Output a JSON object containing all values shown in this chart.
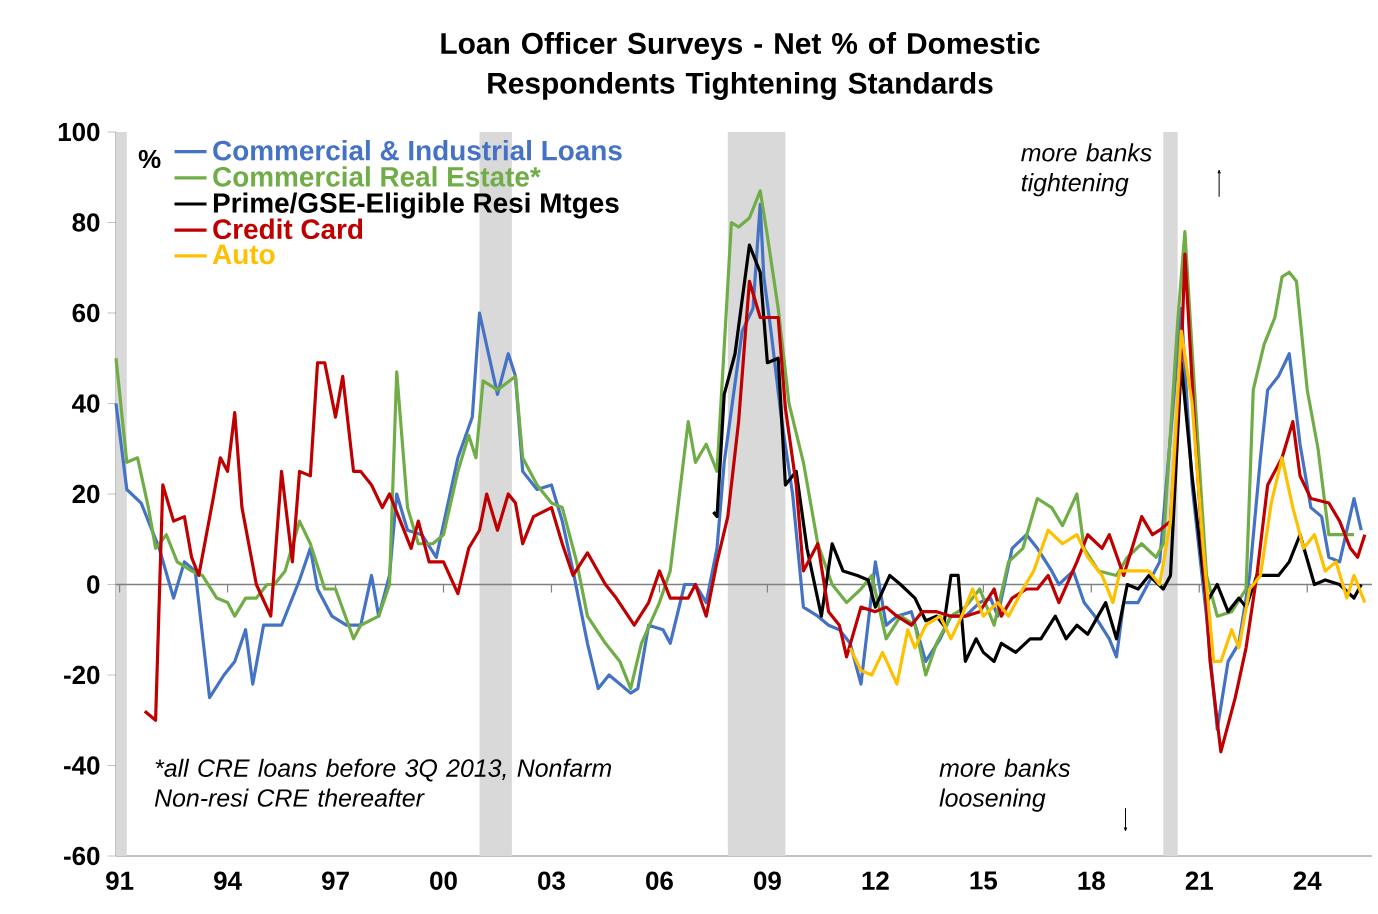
{
  "chart_data": {
    "type": "line",
    "title": "Loan Officer Surveys - Net % of Domestic Respondents Tightening Standards",
    "ylabel": "%",
    "xlim": [
      1990.9,
      2025.8
    ],
    "ylim": [
      -60,
      100
    ],
    "xticks": [
      {
        "value": 1991,
        "label": "91"
      },
      {
        "value": 1994,
        "label": "94"
      },
      {
        "value": 1997,
        "label": "97"
      },
      {
        "value": 2000,
        "label": "00"
      },
      {
        "value": 2003,
        "label": "03"
      },
      {
        "value": 2006,
        "label": "06"
      },
      {
        "value": 2009,
        "label": "09"
      },
      {
        "value": 2012,
        "label": "12"
      },
      {
        "value": 2015,
        "label": "15"
      },
      {
        "value": 2018,
        "label": "18"
      },
      {
        "value": 2021,
        "label": "21"
      },
      {
        "value": 2024,
        "label": "24"
      }
    ],
    "yticks": [
      -60,
      -40,
      -20,
      0,
      20,
      40,
      60,
      80,
      100
    ],
    "legend": "top left",
    "marker": "none",
    "line_style": "solid",
    "series": [
      {
        "name": "Commercial & Industrial Loans",
        "color": "#4472c4",
        "x": [
          1990.9,
          1991.2,
          1991.6,
          1992.1,
          1992.5,
          1992.8,
          1993.1,
          1993.5,
          1993.9,
          1994.2,
          1994.5,
          1994.7,
          1995.0,
          1995.5,
          1996.0,
          1996.3,
          1996.5,
          1996.9,
          1997.3,
          1997.7,
          1998.0,
          1998.2,
          1998.5,
          1998.7,
          1999.0,
          1999.4,
          1999.8,
          2000.4,
          2000.8,
          2001.0,
          2001.5,
          2001.8,
          2002.0,
          2002.2,
          2002.6,
          2003.0,
          2003.3,
          2003.6,
          2004.0,
          2004.3,
          2004.6,
          2004.9,
          2005.2,
          2005.4,
          2005.7,
          2006.1,
          2006.3,
          2006.7,
          2007.0,
          2007.3,
          2007.6,
          2007.8,
          2008.3,
          2008.6,
          2008.8,
          2008.9,
          2009.1,
          2009.4,
          2009.7,
          2010.0,
          2010.4,
          2010.7,
          2011.0,
          2011.3,
          2011.6,
          2012.0,
          2012.3,
          2012.6,
          2013.0,
          2013.4,
          2013.8,
          2014.1,
          2014.5,
          2014.9,
          2015.2,
          2015.4,
          2015.8,
          2016.2,
          2016.5,
          2016.9,
          2017.1,
          2017.5,
          2017.8,
          2018.1,
          2018.5,
          2018.7,
          2018.9,
          2019.3,
          2019.7,
          2019.9,
          2020.3,
          2020.5,
          2020.8,
          2021.2,
          2021.5,
          2021.8,
          2022.1,
          2022.4,
          2022.7,
          2022.9,
          2023.2,
          2023.5,
          2023.8,
          2024.1,
          2024.4,
          2024.6,
          2024.9,
          2025.3,
          2025.5
        ],
        "values": [
          40,
          21,
          18,
          8,
          -3,
          5,
          3,
          -25,
          -20,
          -17,
          -10,
          -22,
          -9,
          -9,
          1,
          8,
          -1,
          -7,
          -9,
          -9,
          2,
          -7,
          2,
          20,
          12,
          11,
          6,
          28,
          37,
          60,
          42,
          51,
          46,
          25,
          21,
          22,
          14,
          3,
          -13,
          -23,
          -20,
          -22,
          -24,
          -23,
          -9,
          -10,
          -13,
          0,
          0,
          -4,
          8,
          27,
          56,
          61,
          84,
          68,
          56,
          36,
          20,
          -5,
          -7,
          -9,
          -10,
          -13,
          -22,
          5,
          -9,
          -7,
          -6,
          -17,
          -12,
          -7,
          -7,
          -4,
          -3,
          -7,
          8,
          11,
          8,
          3,
          0,
          3,
          -4,
          -7,
          -12,
          -16,
          -4,
          -4,
          2,
          5,
          42,
          61,
          22,
          -7,
          -32,
          -17,
          -13,
          2,
          28,
          43,
          46,
          51,
          31,
          17,
          15,
          6,
          5,
          19,
          12
        ]
      },
      {
        "name": "Commercial Real Estate*",
        "color": "#70ad47",
        "x": [
          1990.9,
          1991.2,
          1991.5,
          1991.8,
          1992.0,
          1992.3,
          1992.6,
          1993.0,
          1993.3,
          1993.7,
          1994.0,
          1994.2,
          1994.5,
          1994.8,
          1995.1,
          1995.3,
          1995.6,
          1996.0,
          1996.3,
          1996.7,
          1997.0,
          1997.5,
          1997.7,
          1998.2,
          1998.5,
          1998.7,
          1999.0,
          1999.3,
          1999.7,
          2000.0,
          2000.4,
          2000.7,
          2000.9,
          2001.1,
          2001.5,
          2002.0,
          2002.2,
          2002.6,
          2003.0,
          2003.3,
          2003.7,
          2004.0,
          2004.5,
          2004.9,
          2005.2,
          2005.5,
          2006.0,
          2006.3,
          2006.8,
          2007.0,
          2007.3,
          2007.6,
          2008.0,
          2008.2,
          2008.5,
          2008.8,
          2009.0,
          2009.3,
          2009.6,
          2010.0,
          2010.4,
          2010.8,
          2011.2,
          2011.6,
          2011.9,
          2012.3,
          2012.7,
          2013.1,
          2013.4,
          2013.7,
          2014.1,
          2014.5,
          2014.9,
          2015.3,
          2015.7,
          2016.1,
          2016.5,
          2016.9,
          2017.2,
          2017.6,
          2017.8,
          2018.2,
          2018.7,
          2019.0,
          2019.4,
          2019.8,
          2020.0,
          2020.4,
          2020.6,
          2020.9,
          2021.2,
          2021.5,
          2021.9,
          2022.3,
          2022.5,
          2022.8,
          2023.1,
          2023.3,
          2023.5,
          2023.7,
          2024.0,
          2024.3,
          2024.6,
          2024.9,
          2025.3
        ],
        "values": [
          50,
          27,
          28,
          17,
          8,
          11,
          5,
          3,
          2,
          -3,
          -4,
          -7,
          -3,
          -3,
          0,
          0,
          3,
          14,
          9,
          -1,
          -1,
          -12,
          -9,
          -7,
          0,
          47,
          17,
          9,
          9,
          11,
          25,
          33,
          28,
          45,
          43,
          46,
          28,
          22,
          18,
          17,
          5,
          -7,
          -13,
          -17,
          -23,
          -13,
          -4,
          3,
          36,
          27,
          31,
          25,
          80,
          79,
          81,
          87,
          77,
          61,
          40,
          27,
          9,
          0,
          -4,
          -1,
          2,
          -12,
          -7,
          -9,
          -20,
          -13,
          -7,
          -5,
          -1,
          -9,
          5,
          8,
          19,
          17,
          13,
          20,
          8,
          3,
          2,
          6,
          9,
          6,
          9,
          58,
          78,
          39,
          2,
          -7,
          -6,
          -1,
          43,
          53,
          59,
          68,
          69,
          67,
          43,
          30,
          11,
          11,
          11
        ]
      },
      {
        "name": "Prime/GSE-Eligible Resi Mtges",
        "color": "#000000",
        "x": [
          2007.5,
          2007.6,
          2007.8,
          2008.1,
          2008.5,
          2008.8,
          2009.0,
          2009.3,
          2009.5,
          2009.8,
          2010.1,
          2010.5,
          2010.8,
          2011.1,
          2011.5,
          2011.8,
          2012.0,
          2012.4,
          2012.7,
          2013.1,
          2013.4,
          2013.7,
          2013.9,
          2014.1,
          2014.3,
          2014.5,
          2014.8,
          2015.0,
          2015.3,
          2015.5,
          2015.9,
          2016.3,
          2016.6,
          2017.0,
          2017.3,
          2017.6,
          2017.9,
          2018.4,
          2018.7,
          2019.0,
          2019.3,
          2019.6,
          2020.0,
          2020.2,
          2020.5,
          2020.8,
          2021.2,
          2021.5,
          2021.8,
          2022.1,
          2022.3,
          2022.6,
          2023.2,
          2023.5,
          2023.8,
          2024.2,
          2024.5,
          2024.9,
          2025.3,
          2025.5
        ],
        "values": [
          16,
          15,
          42,
          51,
          75,
          69,
          49,
          50,
          22,
          25,
          8,
          -7,
          9,
          3,
          2,
          1,
          -5,
          2,
          0,
          -3,
          -8,
          -7,
          -9,
          2,
          2,
          -17,
          -12,
          -15,
          -17,
          -13,
          -15,
          -12,
          -12,
          -7,
          -12,
          -9,
          -11,
          -4,
          -12,
          0,
          -1,
          2,
          -1,
          2,
          49,
          24,
          -4,
          0,
          -6,
          -3,
          -5,
          2,
          2,
          5,
          11,
          0,
          1,
          0,
          -3,
          0
        ]
      },
      {
        "name": "Credit Card",
        "color": "#c00000",
        "x": [
          1991.7,
          1992.0,
          1992.2,
          1992.5,
          1992.8,
          1993.0,
          1993.2,
          1993.6,
          1993.8,
          1994.0,
          1994.2,
          1994.4,
          1994.8,
          1995.2,
          1995.5,
          1995.8,
          1996.0,
          1996.3,
          1996.5,
          1996.7,
          1997.0,
          1997.2,
          1997.5,
          1997.7,
          1998.0,
          1998.3,
          1998.5,
          1998.9,
          1999.1,
          1999.3,
          1999.6,
          2000.0,
          2000.4,
          2000.7,
          2001.0,
          2001.2,
          2001.5,
          2001.8,
          2002.0,
          2002.2,
          2002.5,
          2003.0,
          2003.3,
          2003.6,
          2004.0,
          2004.5,
          2004.8,
          2005.3,
          2005.7,
          2006.0,
          2006.3,
          2006.8,
          2007.0,
          2007.3,
          2007.6,
          2007.9,
          2008.2,
          2008.5,
          2008.8,
          2009.3,
          2009.5,
          2009.8,
          2010.0,
          2010.4,
          2010.7,
          2011.0,
          2011.2,
          2011.6,
          2012.0,
          2012.3,
          2012.6,
          2013.0,
          2013.3,
          2013.7,
          2014.1,
          2014.5,
          2014.9,
          2015.3,
          2015.5,
          2015.8,
          2016.2,
          2016.5,
          2016.8,
          2017.1,
          2017.6,
          2017.9,
          2018.3,
          2018.5,
          2018.9,
          2019.4,
          2019.7,
          2019.9,
          2020.2,
          2020.5,
          2020.6,
          2020.9,
          2021.3,
          2021.6,
          2022.0,
          2022.3,
          2022.6,
          2022.9,
          2023.3,
          2023.6,
          2023.8,
          2024.1,
          2024.6,
          2024.9,
          2025.2,
          2025.4,
          2025.6
        ],
        "values": [
          -28,
          -30,
          22,
          14,
          15,
          6,
          2,
          19,
          28,
          25,
          38,
          17,
          0,
          -7,
          25,
          5,
          25,
          24,
          49,
          49,
          37,
          46,
          25,
          25,
          22,
          17,
          20,
          12,
          8,
          14,
          5,
          5,
          -2,
          8,
          12,
          20,
          12,
          20,
          18,
          9,
          15,
          17,
          9,
          2,
          7,
          0,
          -3,
          -9,
          -4,
          3,
          -3,
          -3,
          0,
          -7,
          5,
          15,
          36,
          67,
          59,
          59,
          39,
          22,
          3,
          9,
          -6,
          -9,
          -16,
          -5,
          -6,
          -5,
          -7,
          -9,
          -6,
          -6,
          -7,
          -7,
          -6,
          -1,
          -7,
          -3,
          -1,
          -1,
          2,
          -4,
          5,
          11,
          8,
          11,
          2,
          15,
          11,
          12,
          14,
          50,
          73,
          31,
          -17,
          -37,
          -25,
          -14,
          2,
          22,
          28,
          36,
          24,
          19,
          18,
          14,
          8,
          6,
          11
        ]
      },
      {
        "name": "Auto",
        "color": "#ffc000",
        "x": [
          2011.3,
          2011.6,
          2011.9,
          2012.2,
          2012.6,
          2012.9,
          2013.1,
          2013.4,
          2013.8,
          2014.1,
          2014.4,
          2014.7,
          2015.0,
          2015.4,
          2015.7,
          2016.1,
          2016.4,
          2016.8,
          2017.2,
          2017.6,
          2017.9,
          2018.3,
          2018.6,
          2018.8,
          2019.2,
          2019.6,
          2019.9,
          2020.2,
          2020.5,
          2020.8,
          2021.1,
          2021.4,
          2021.6,
          2021.9,
          2022.1,
          2022.4,
          2022.7,
          2023.0,
          2023.3,
          2023.6,
          2023.9,
          2024.2,
          2024.5,
          2024.8,
          2025.1,
          2025.3,
          2025.6
        ],
        "values": [
          -14,
          -19,
          -20,
          -15,
          -22,
          -10,
          -14,
          -9,
          -7,
          -12,
          -7,
          -1,
          -7,
          -4,
          -7,
          -1,
          3,
          12,
          9,
          11,
          6,
          2,
          -4,
          3,
          3,
          3,
          0,
          14,
          56,
          40,
          9,
          -17,
          -17,
          -10,
          -14,
          -1,
          2,
          18,
          28,
          17,
          8,
          11,
          3,
          5,
          -3,
          2,
          -4
        ]
      }
    ],
    "bands": [
      {
        "axis": "x",
        "from": 1990.9,
        "to": 1991.2,
        "color": "#d9d9d9"
      },
      {
        "axis": "x",
        "from": 2001.0,
        "to": 2001.9,
        "color": "#d9d9d9"
      },
      {
        "axis": "x",
        "from": 2007.9,
        "to": 2009.5,
        "color": "#d9d9d9"
      },
      {
        "axis": "x",
        "from": 2020.0,
        "to": 2020.4,
        "color": "#d9d9d9"
      }
    ],
    "ref_lines": [
      {
        "axis": "y",
        "value": 0,
        "color": "#808080"
      }
    ],
    "annotations": [
      "more banks tightening",
      "more banks loosening",
      "*all CRE loans before 3Q 2013, Nonfarm Non-resi CRE thereafter"
    ]
  }
}
